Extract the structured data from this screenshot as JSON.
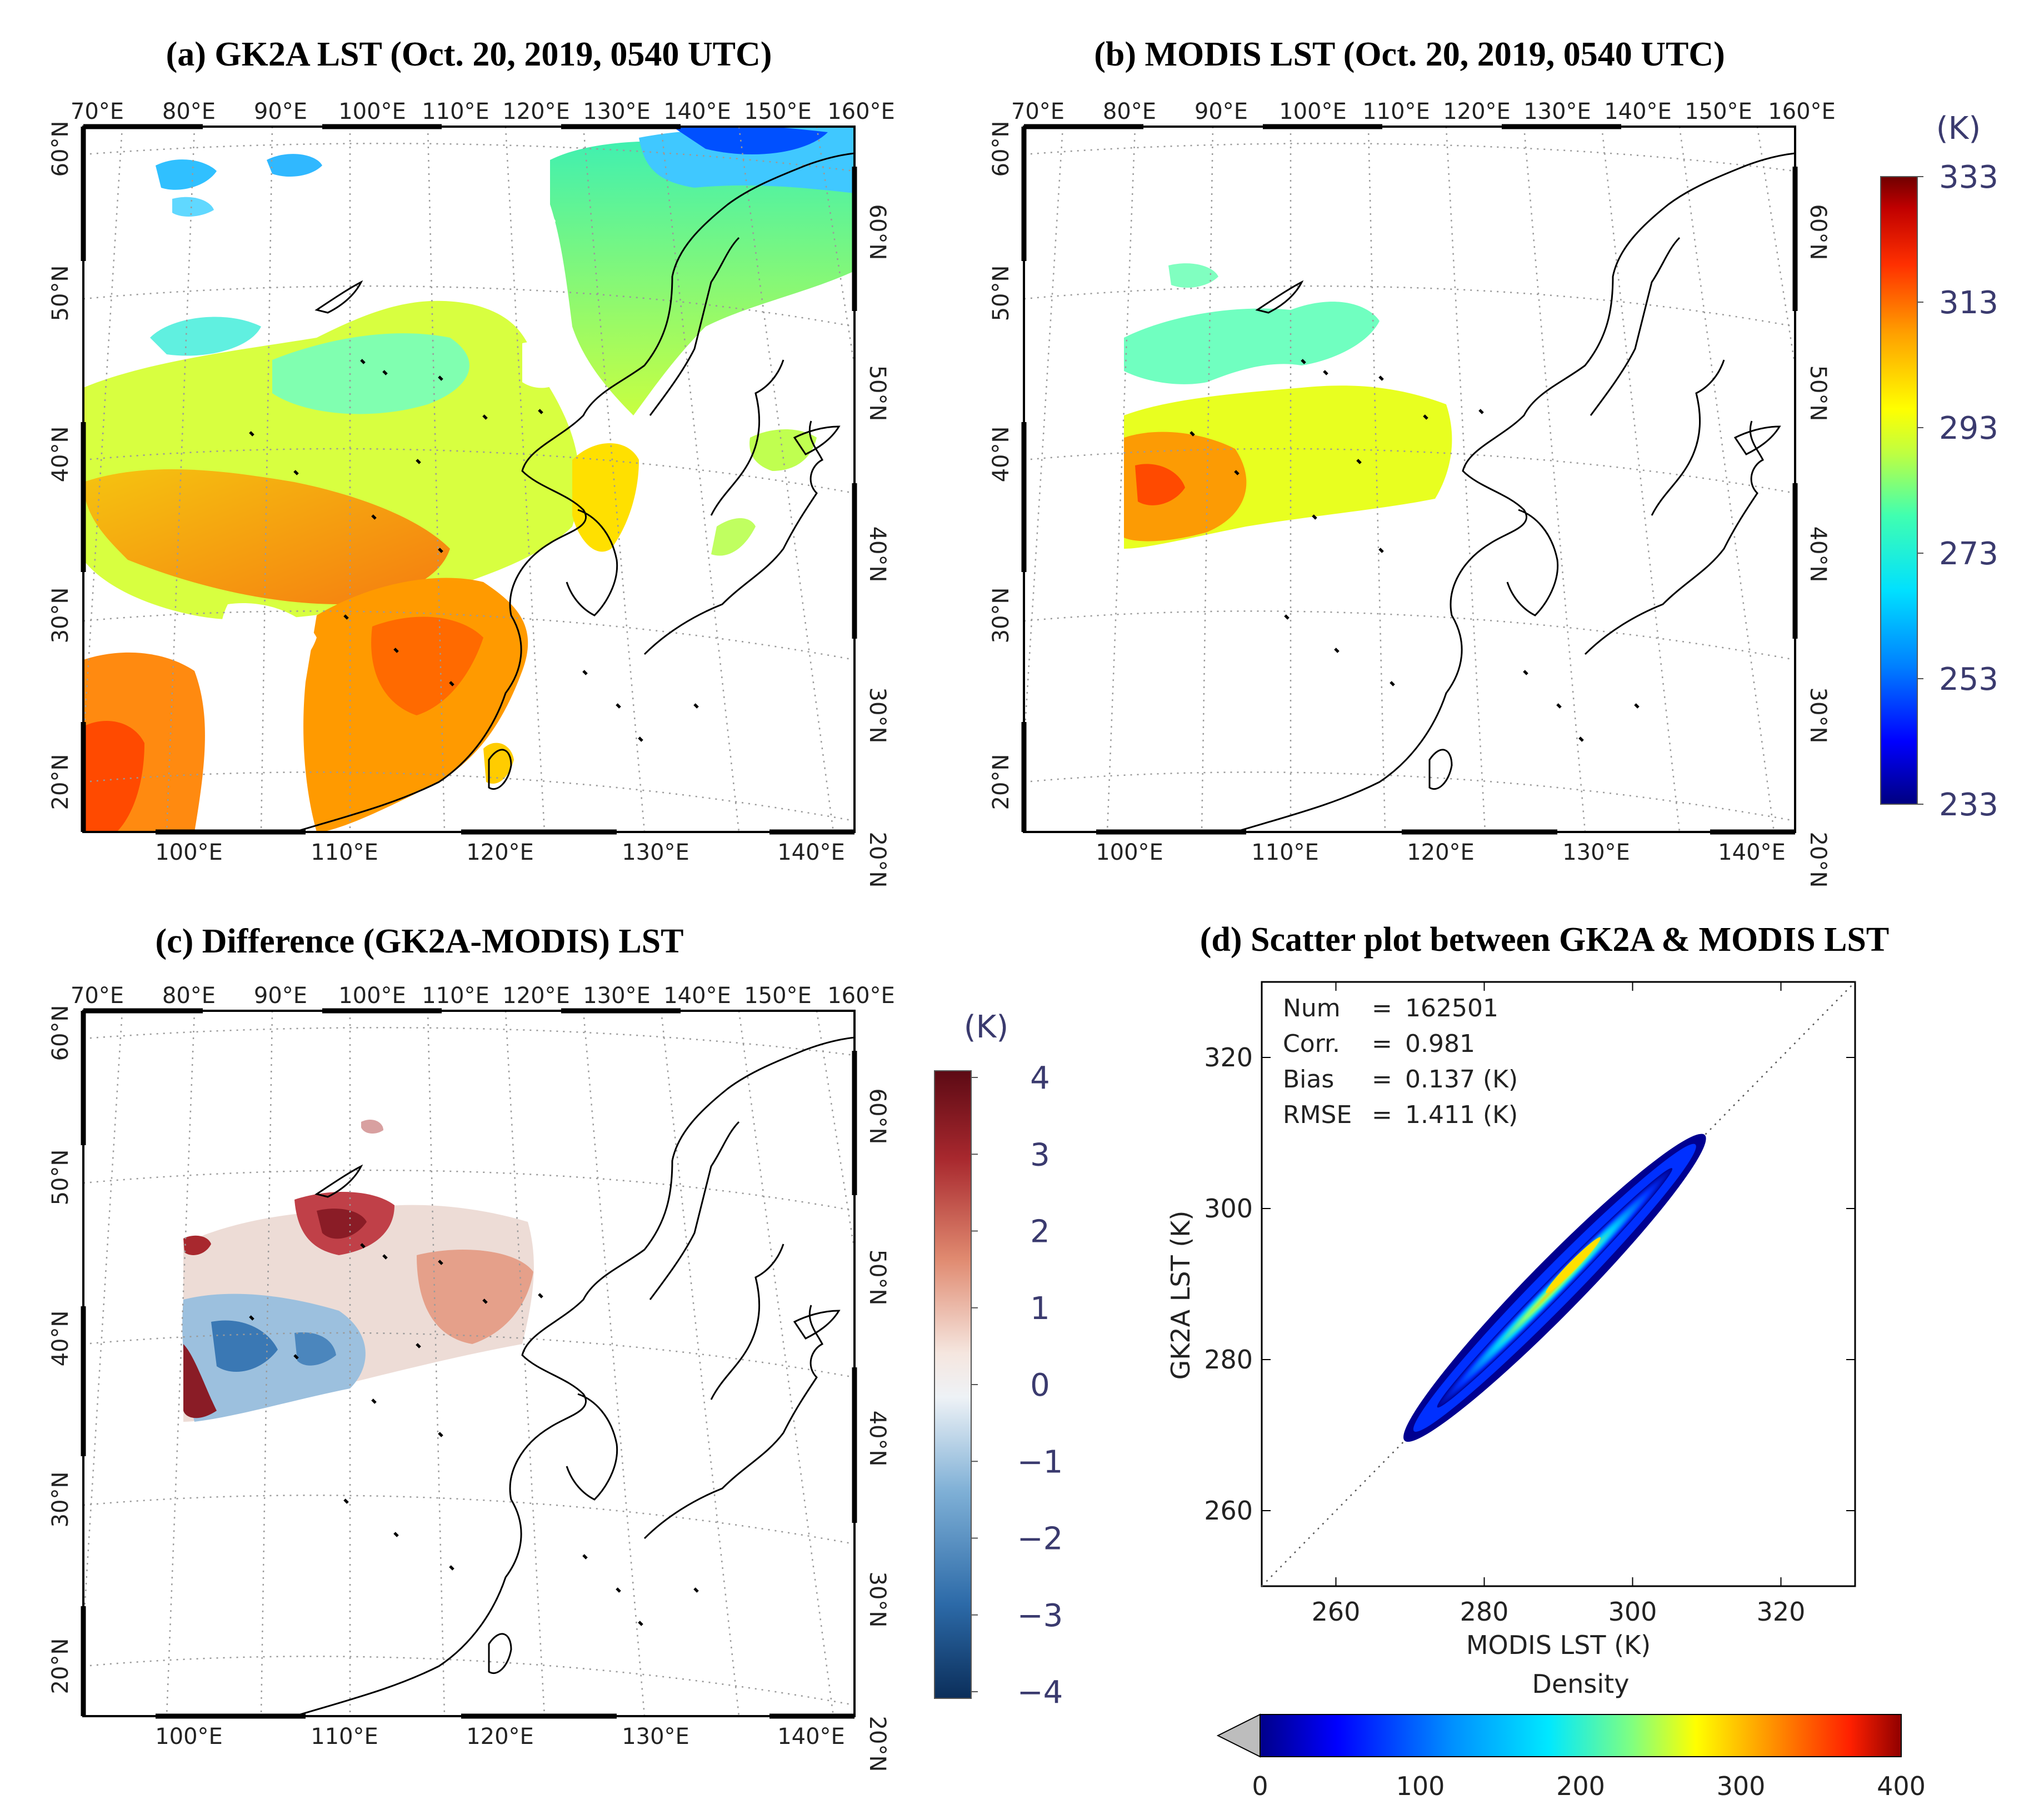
{
  "colors": {
    "lst_scale": [
      "#000080",
      "#0000ff",
      "#0080ff",
      "#00e0ff",
      "#40ffb0",
      "#c0ff40",
      "#ffff00",
      "#ffa000",
      "#ff3000",
      "#c00000",
      "#700000"
    ],
    "diff_scale": [
      "#0b2e5a",
      "#2c6aa8",
      "#7fb0d6",
      "#dfe9f1",
      "#f1dfd6",
      "#e08a70",
      "#a8282e",
      "#5c0a14"
    ],
    "density_scale": [
      "#00008a",
      "#0000ff",
      "#0090ff",
      "#00e8ff",
      "#80ff80",
      "#ffff00",
      "#ff9000",
      "#ff2000",
      "#900000"
    ]
  },
  "panels": {
    "a": {
      "title": "(a) GK2A LST (Oct. 20, 2019, 0540 UTC)",
      "top_lon_labels": [
        "70°E",
        "80°E",
        "90°E",
        "100°E",
        "110°E",
        "120°E",
        "130°E",
        "140°E",
        "150°E",
        "160°E"
      ],
      "bottom_lon_labels": [
        "100°E",
        "110°E",
        "120°E",
        "130°E",
        "140°E"
      ],
      "left_lat_labels": [
        "60°N",
        "50°N",
        "40°N",
        "30°N",
        "20°N"
      ],
      "right_lat_labels": [
        "60°N",
        "50°N",
        "40°N",
        "30°N",
        "20°N"
      ]
    },
    "b": {
      "title": "(b) MODIS LST (Oct. 20, 2019, 0540 UTC)",
      "top_lon_labels": [
        "70°E",
        "80°E",
        "90°E",
        "100°E",
        "110°E",
        "120°E",
        "130°E",
        "140°E",
        "150°E",
        "160°E"
      ],
      "bottom_lon_labels": [
        "100°E",
        "110°E",
        "120°E",
        "130°E",
        "140°E"
      ],
      "left_lat_labels": [
        "60°N",
        "50°N",
        "40°N",
        "30°N",
        "20°N"
      ],
      "right_lat_labels": [
        "60°N",
        "50°N",
        "40°N",
        "30°N",
        "20°N"
      ]
    },
    "c": {
      "title": "(c) Difference (GK2A-MODIS) LST",
      "top_lon_labels": [
        "70°E",
        "80°E",
        "90°E",
        "100°E",
        "110°E",
        "120°E",
        "130°E",
        "140°E",
        "150°E",
        "160°E"
      ],
      "bottom_lon_labels": [
        "100°E",
        "110°E",
        "120°E",
        "130°E",
        "140°E"
      ],
      "left_lat_labels": [
        "60°N",
        "50°N",
        "40°N",
        "30°N",
        "20°N"
      ],
      "right_lat_labels": [
        "60°N",
        "50°N",
        "40°N",
        "30°N",
        "20°N"
      ]
    },
    "d": {
      "title": "(d) Scatter plot between GK2A & MODIS LST"
    }
  },
  "colorbars": {
    "lst": {
      "unit": "(K)",
      "labels": [
        "333",
        "313",
        "293",
        "273",
        "253",
        "233"
      ]
    },
    "diff": {
      "unit": "(K)",
      "labels": [
        "4",
        "3",
        "2",
        "1",
        "0",
        "−1",
        "−2",
        "−3",
        "−4"
      ]
    },
    "density": {
      "title": "Density",
      "labels": [
        "0",
        "100",
        "200",
        "300",
        "400"
      ]
    }
  },
  "chart_data": [
    {
      "type": "heatmap",
      "title": "(a) GK2A LST (Oct. 20, 2019, 0540 UTC)",
      "variable": "Land surface temperature (K)",
      "colorbar_range": [
        233,
        333
      ],
      "lon_ticks": [
        70,
        80,
        90,
        100,
        110,
        120,
        130,
        140,
        150,
        160
      ],
      "lat_ticks": [
        20,
        30,
        40,
        50,
        60
      ]
    },
    {
      "type": "heatmap",
      "title": "(b) MODIS LST (Oct. 20, 2019, 0540 UTC)",
      "variable": "Land surface temperature (K)",
      "colorbar_range": [
        233,
        333
      ],
      "lon_ticks": [
        70,
        80,
        90,
        100,
        110,
        120,
        130,
        140,
        150,
        160
      ],
      "lat_ticks": [
        20,
        30,
        40,
        50,
        60
      ]
    },
    {
      "type": "heatmap",
      "title": "(c) Difference (GK2A-MODIS) LST",
      "variable": "GK2A minus MODIS LST (K)",
      "colorbar_range": [
        -4,
        4
      ]
    },
    {
      "type": "scatter",
      "title": "(d) Scatter plot between GK2A & MODIS LST",
      "xlabel": "MODIS LST (K)",
      "ylabel": "GK2A LST (K)",
      "xlim": [
        250,
        330
      ],
      "ylim": [
        250,
        330
      ],
      "xticks": [
        260,
        280,
        300,
        320
      ],
      "yticks": [
        260,
        280,
        300,
        320
      ],
      "one_to_one_line": true,
      "cluster": {
        "x_range": [
          270,
          309
        ],
        "y_range": [
          270,
          309
        ]
      },
      "density_range": [
        0,
        400
      ],
      "stats": [
        {
          "label": "Num",
          "value": "162501"
        },
        {
          "label": "Corr.",
          "value": "0.981"
        },
        {
          "label": "Bias",
          "value": "0.137 (K)"
        },
        {
          "label": "RMSE",
          "value": "1.411 (K)"
        }
      ]
    }
  ]
}
